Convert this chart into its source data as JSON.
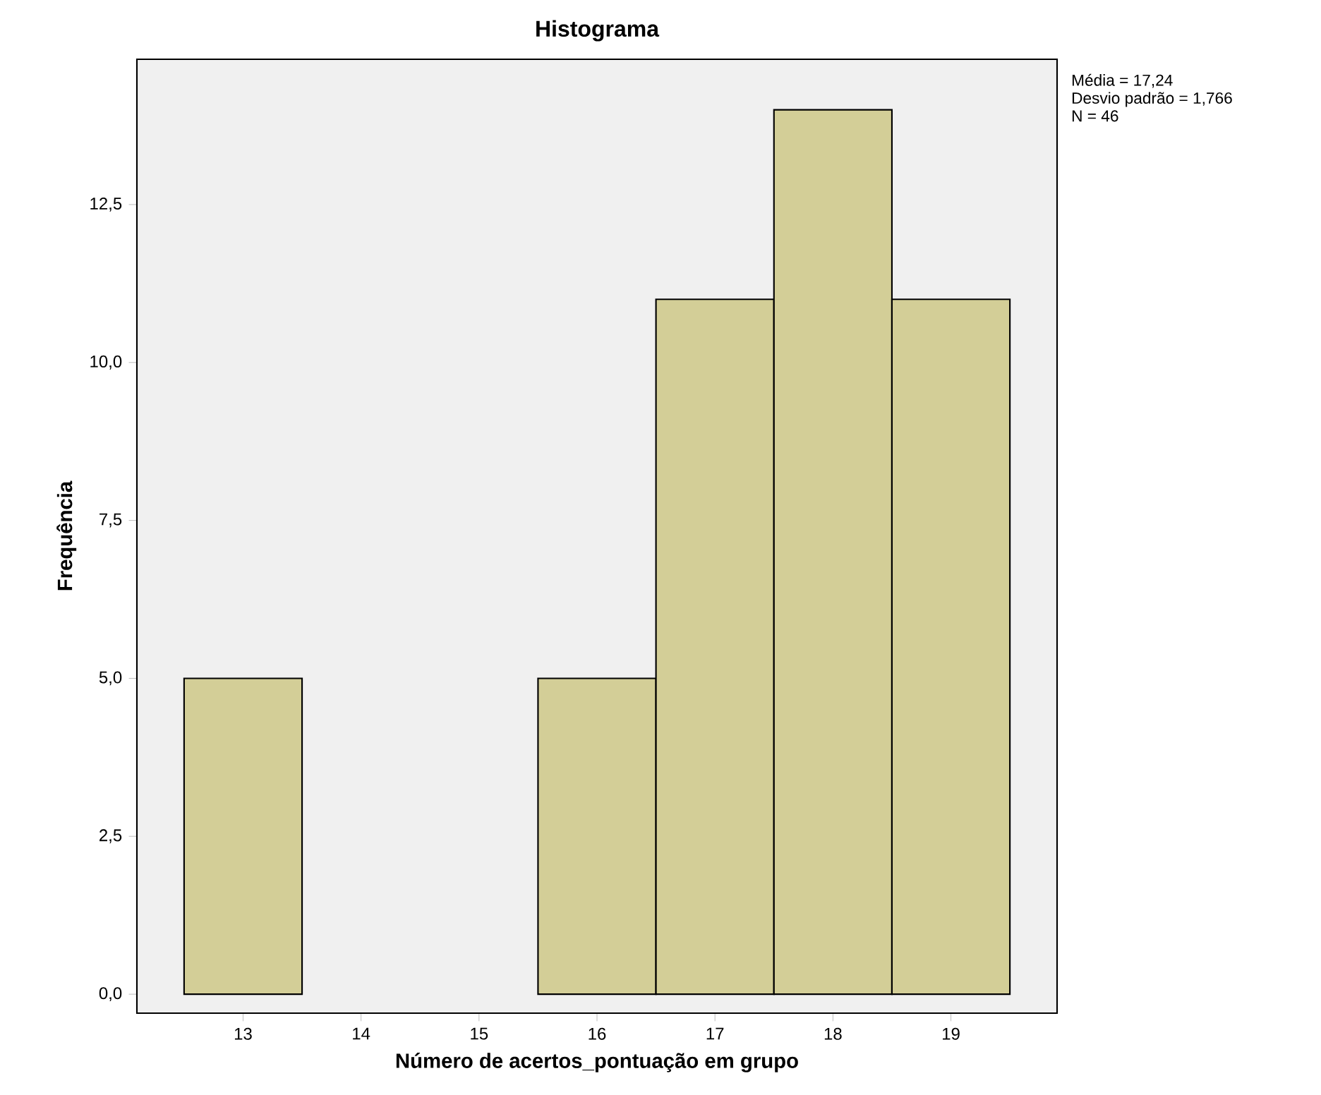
{
  "chart_data": {
    "type": "histogram",
    "title": "Histograma",
    "xlabel": "Número de acertos_pontuação em grupo",
    "ylabel": "Frequência",
    "bins": [
      12.5,
      13.5,
      14.5,
      15.5,
      16.5,
      17.5,
      18.5,
      19.5
    ],
    "values": [
      5,
      0,
      0,
      5,
      11,
      14,
      11
    ],
    "color": "#d3ce97",
    "xlim": [
      12.1,
      19.9
    ],
    "ylim": [
      -0.3,
      14.8
    ],
    "xticks": [
      13,
      14,
      15,
      16,
      17,
      18,
      19
    ],
    "yticks": [
      {
        "value": 0,
        "label": "0,0"
      },
      {
        "value": 2.5,
        "label": "2,5"
      },
      {
        "value": 5,
        "label": "5,0"
      },
      {
        "value": 7.5,
        "label": "7,5"
      },
      {
        "value": 10,
        "label": "10,0"
      },
      {
        "value": 12.5,
        "label": "12,5"
      }
    ],
    "annotations": [
      "Média = 17,24",
      "Desvio padrão = 1,766",
      "N = 46"
    ]
  }
}
